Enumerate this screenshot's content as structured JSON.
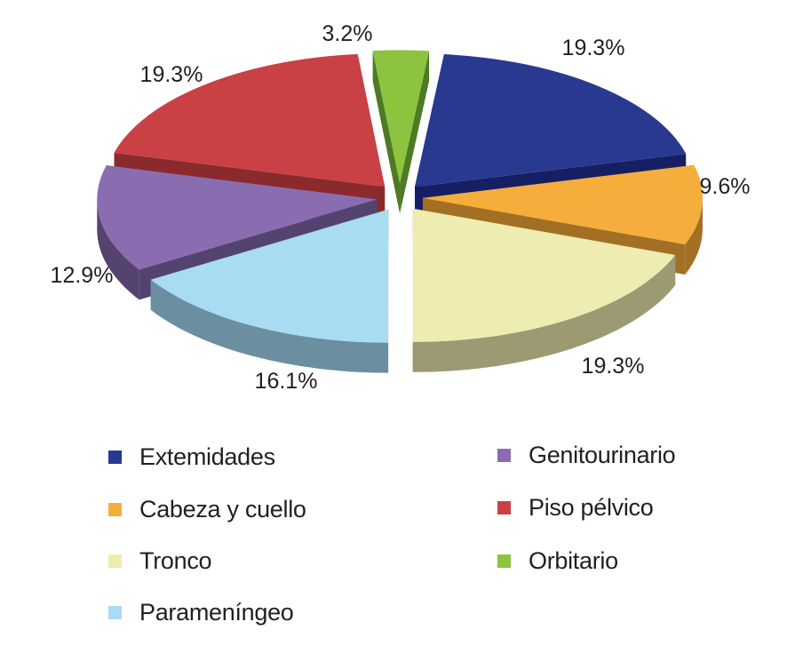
{
  "chart_data": {
    "type": "pie",
    "title": "",
    "style": "3d-exploded",
    "legend_position": "bottom",
    "slices": [
      {
        "label": "Extemidades",
        "value": 19.3,
        "value_label": "19.3%",
        "color": "#2a3990",
        "side": "#161f63"
      },
      {
        "label": "Cabeza y cuello",
        "value": 9.6,
        "value_label": "9.6%",
        "color": "#f5ad3c",
        "side": "#a36f24"
      },
      {
        "label": "Tronco",
        "value": 19.3,
        "value_label": "19.3%",
        "color": "#eeecb0",
        "side": "#9b9a72"
      },
      {
        "label": "Parameníngeo",
        "value": 16.1,
        "value_label": "16.1%",
        "color": "#a7dcf3",
        "side": "#6b8ea0"
      },
      {
        "label": "Genitourinario",
        "value": 12.9,
        "value_label": "12.9%",
        "color": "#8a6db0",
        "side": "#55436f"
      },
      {
        "label": "Piso pélvico",
        "value": 19.3,
        "value_label": "19.3%",
        "color": "#c94144",
        "side": "#8a2a2c"
      },
      {
        "label": "Orbitario",
        "value": 3.2,
        "value_label": "3.2%",
        "color": "#8dc43f",
        "side": "#4d7a22"
      }
    ]
  }
}
